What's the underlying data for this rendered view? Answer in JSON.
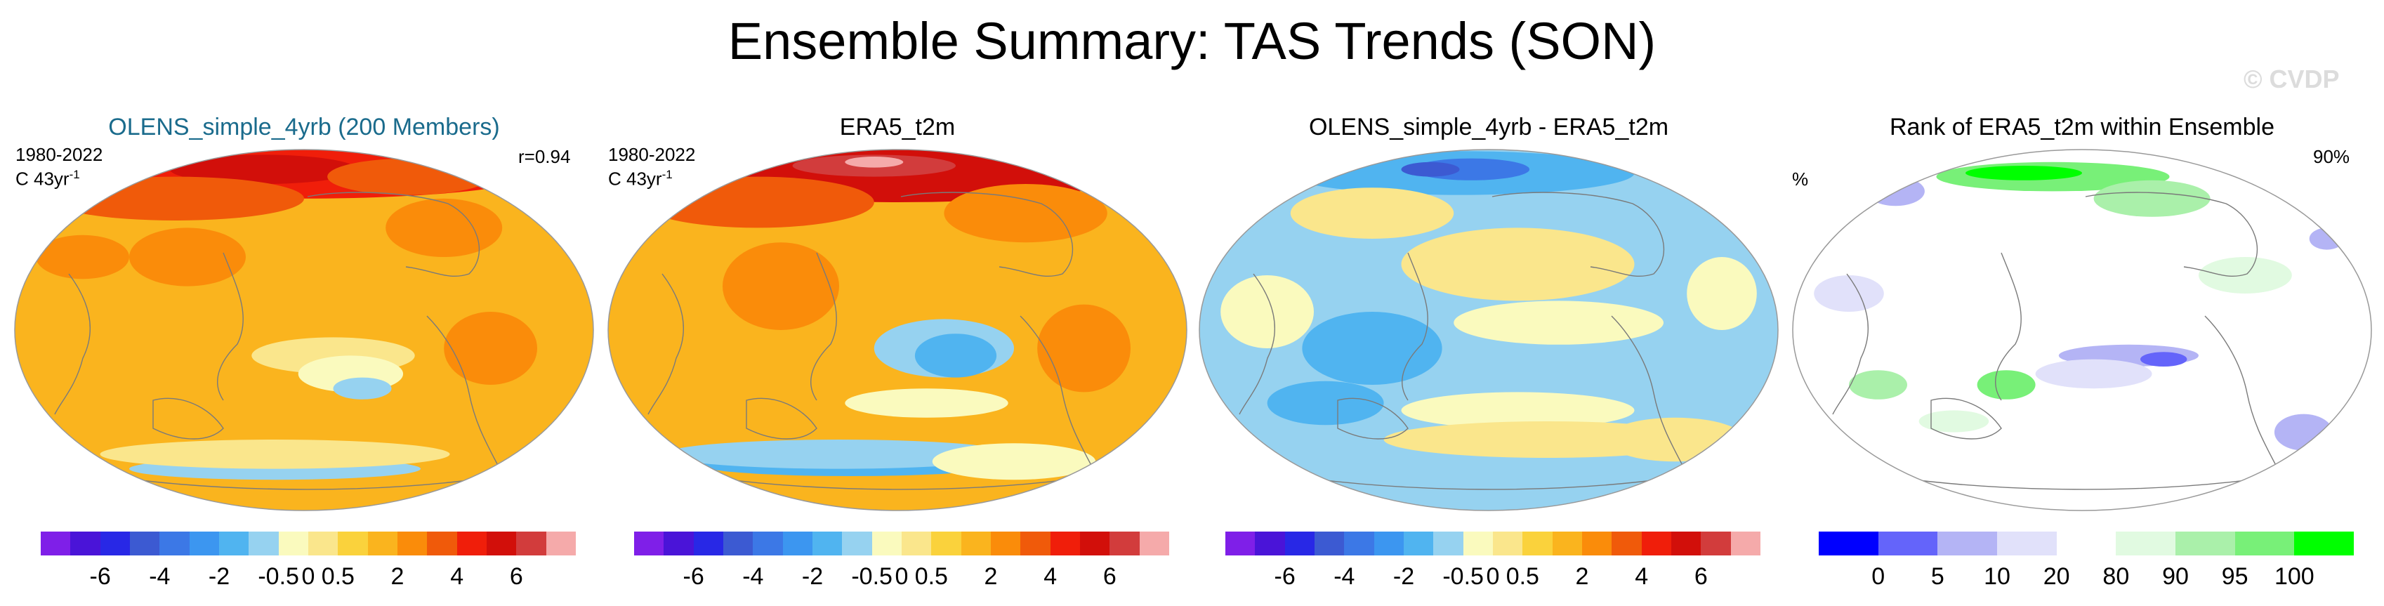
{
  "title": "Ensemble Summary: TAS Trends (SON)",
  "watermark": "© CVDP",
  "chart_data": [
    {
      "type": "heatmap",
      "panel": "ensemble_mean",
      "title": "OLENS_simple_4yrb (200 Members)",
      "title_color": "#1a6b8c",
      "period": "1980-2022",
      "units": "C 43yr",
      "units_exponent": "-1",
      "correlation": "r=0.94",
      "projection": "Robinson, Pacific-centered",
      "field_summary": "Warming nearly everywhere; strongest (4-6) over Arctic and northern Siberia; weak trends (0-0.5) and slight cooling (-0.5 to 0) in the eastern tropical/southern Pacific and Southern Ocean",
      "colorbar": {
        "colors": [
          "#7f1fe8",
          "#4a14d8",
          "#2828e6",
          "#3c5ad2",
          "#3c78e6",
          "#3c96f0",
          "#50b4f0",
          "#96d2f0",
          "#fafabe",
          "#fae68c",
          "#fad23c",
          "#fab41e",
          "#fa8c0a",
          "#f05a0a",
          "#f01e0a",
          "#d20f0a",
          "#d23c3c",
          "#f5aaaa"
        ],
        "tick_labels": [
          "-6",
          "-4",
          "-2",
          "-0.5",
          "0",
          "0.5",
          "2",
          "4",
          "6"
        ],
        "tick_boundaries": [
          2,
          4,
          6,
          8,
          9,
          10,
          12,
          14,
          16
        ]
      }
    },
    {
      "type": "heatmap",
      "panel": "observations",
      "title": "ERA5_t2m",
      "title_color": "#000000",
      "period": "1980-2022",
      "units": "C 43yr",
      "units_exponent": "-1",
      "field_summary": "Warming over most land and northern oceans, strongest (6+) over Arctic Siberia and the Barents region; cooling (-2 to -0.5) in the eastern tropical Pacific and Southern Ocean",
      "colorbar": {
        "colors": [
          "#7f1fe8",
          "#4a14d8",
          "#2828e6",
          "#3c5ad2",
          "#3c78e6",
          "#3c96f0",
          "#50b4f0",
          "#96d2f0",
          "#fafabe",
          "#fae68c",
          "#fad23c",
          "#fab41e",
          "#fa8c0a",
          "#f05a0a",
          "#f01e0a",
          "#d20f0a",
          "#d23c3c",
          "#f5aaaa"
        ],
        "tick_labels": [
          "-6",
          "-4",
          "-2",
          "-0.5",
          "0",
          "0.5",
          "2",
          "4",
          "6"
        ],
        "tick_boundaries": [
          2,
          4,
          6,
          8,
          9,
          10,
          12,
          14,
          16
        ]
      }
    },
    {
      "type": "heatmap",
      "panel": "difference",
      "title": "OLENS_simple_4yrb - ERA5_t2m",
      "title_color": "#000000",
      "field_summary": "Model minus observations: negative (-2 to -0.5) over Arctic Siberia, Canada and mid-latitude oceans; positive (0.5 to 2) over the eastern Pacific and parts of the Southern Ocean",
      "colorbar": {
        "colors": [
          "#7f1fe8",
          "#4a14d8",
          "#2828e6",
          "#3c5ad2",
          "#3c78e6",
          "#3c96f0",
          "#50b4f0",
          "#96d2f0",
          "#fafabe",
          "#fae68c",
          "#fad23c",
          "#fab41e",
          "#fa8c0a",
          "#f05a0a",
          "#f01e0a",
          "#d20f0a",
          "#d23c3c",
          "#f5aaaa"
        ],
        "tick_labels": [
          "-6",
          "-4",
          "-2",
          "-0.5",
          "0",
          "0.5",
          "2",
          "4",
          "6"
        ],
        "tick_boundaries": [
          2,
          4,
          6,
          8,
          9,
          10,
          12,
          14,
          16
        ]
      }
    },
    {
      "type": "heatmap",
      "panel": "rank",
      "title": "Rank of ERA5_t2m within Ensemble",
      "title_color": "#000000",
      "units": "%",
      "percent_within": "90%",
      "field_summary": "Mostly 20-80 (white); low ranks (0-10, blue) in the eastern tropical Pacific and scattered spots; high ranks (90-100, green) over the Arctic, Siberia and parts of the Southern Ocean",
      "colorbar": {
        "colors": [
          "#0000ff",
          "#6464fa",
          "#b4b4f5",
          "#e1e1fa",
          "#ffffff",
          "#e1fae1",
          "#aaf0aa",
          "#78f078",
          "#00ff00"
        ],
        "tick_labels": [
          "0",
          "5",
          "10",
          "20",
          "80",
          "90",
          "95",
          "100"
        ],
        "tick_boundaries": [
          1,
          2,
          3,
          4,
          5,
          6,
          7,
          8
        ]
      }
    }
  ]
}
